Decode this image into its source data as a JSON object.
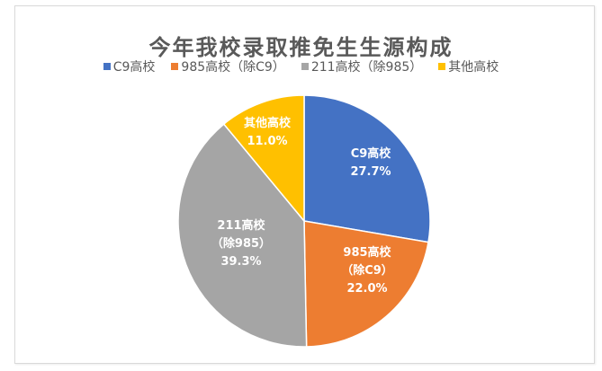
{
  "chart_data": {
    "type": "pie",
    "title": "今年我校录取推免生生源构成",
    "categories": [
      "C9高校",
      "985高校（除C9）",
      "211高校（除985）",
      "其他高校"
    ],
    "values": [
      27.7,
      22.0,
      39.3,
      11.0
    ],
    "unit": "%",
    "colors": [
      "#4472C4",
      "#ED7D31",
      "#A5A5A5",
      "#FFC000"
    ],
    "data_labels": [
      {
        "lines": [
          "C9高校",
          "27.7%"
        ]
      },
      {
        "lines": [
          "985高校",
          "（除C9）",
          "22.0%"
        ]
      },
      {
        "lines": [
          "211高校",
          "（除985）",
          "39.3%"
        ]
      },
      {
        "lines": [
          "其他高校",
          "11.0%"
        ]
      }
    ],
    "legend_position": "top",
    "start_angle_deg": 0,
    "direction": "clockwise"
  },
  "legend": [
    {
      "label": "C9高校",
      "color": "#4472C4"
    },
    {
      "label": "985高校（除C9）",
      "color": "#ED7D31"
    },
    {
      "label": "211高校（除985）",
      "color": "#A5A5A5"
    },
    {
      "label": "其他高校",
      "color": "#FFC000"
    }
  ]
}
